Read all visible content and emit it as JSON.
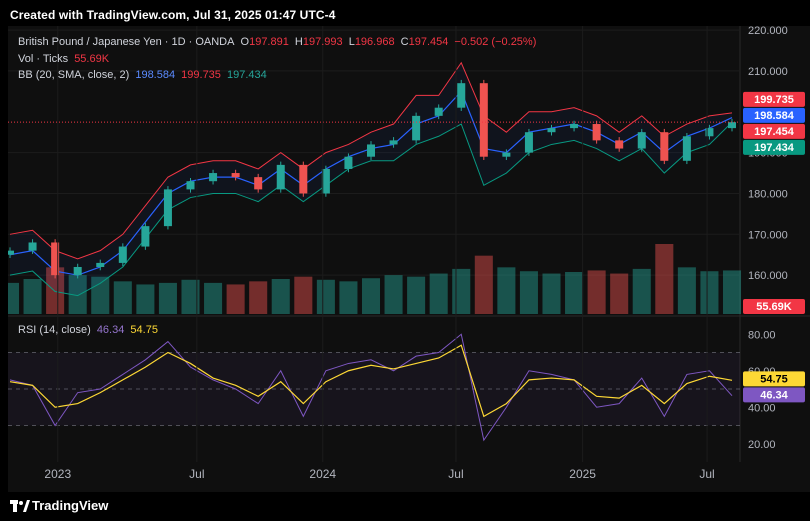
{
  "header": {
    "credit": "Created with TradingView.com, Jul 31, 2025 01:47 UTC-4"
  },
  "legend": {
    "symbol": "British Pound / Japanese Yen · 1D · OANDA",
    "o_label": "O",
    "o_value": "197.891",
    "h_label": "H",
    "h_value": "197.993",
    "l_label": "L",
    "l_value": "196.968",
    "c_label": "C",
    "c_value": "197.454",
    "change": "−0.502 (−0.25%)",
    "vol_label": "Vol · Ticks",
    "vol_value": "55.69K",
    "bb_label": "BB (20, SMA, close, 2)",
    "bb_basis": "198.584",
    "bb_upper": "199.735",
    "bb_lower": "197.434",
    "rsi_label": "RSI (14, close)",
    "rsi_value": "46.34",
    "rsi_ma": "54.75"
  },
  "badges": {
    "upper": "199.735",
    "basis": "198.584",
    "close": "197.454",
    "lower": "197.434",
    "volume": "55.69K",
    "rsi_ma": "54.75",
    "rsi": "46.34"
  },
  "footer": {
    "brand": "TradingView"
  },
  "colors": {
    "up": "#26a69a",
    "down": "#ef5350",
    "bb_upper": "#f23645",
    "bb_basis": "#2962ff",
    "bb_lower": "#089981",
    "rsi": "#7e57c2",
    "rsi_ma": "#fdd835",
    "background": "#0f0f0f"
  },
  "chart_data": [
    {
      "type": "line",
      "title": "British Pound / Japanese Yen · 1D · OANDA",
      "x_ticks": [
        "2023",
        "Jul",
        "2024",
        "Jul",
        "2025",
        "Jul"
      ],
      "y_ticks": [
        "160.000",
        "170.000",
        "180.000",
        "190.000",
        "210.000",
        "220.000"
      ],
      "ylim": [
        150,
        221
      ],
      "x": [
        "2022-11",
        "2022-12",
        "2023-01",
        "2023-02",
        "2023-03",
        "2023-04",
        "2023-05",
        "2023-06",
        "2023-07",
        "2023-08",
        "2023-09",
        "2023-10",
        "2023-11",
        "2023-12",
        "2024-01",
        "2024-02",
        "2024-03",
        "2024-04",
        "2024-05",
        "2024-06",
        "2024-07",
        "2024-08",
        "2024-09",
        "2024-10",
        "2024-11",
        "2024-12",
        "2025-01",
        "2025-02",
        "2025-03",
        "2025-04",
        "2025-05",
        "2025-06",
        "2025-07"
      ],
      "series": [
        {
          "name": "Close",
          "values": [
            166,
            168,
            160,
            162,
            163,
            167,
            172,
            181,
            183,
            185,
            184,
            181,
            187,
            180,
            186,
            189,
            192,
            193,
            199,
            201,
            207,
            189,
            190,
            195,
            196,
            197,
            193,
            191,
            195,
            188,
            194,
            196,
            197.454
          ]
        },
        {
          "name": "BB upper",
          "values": [
            170,
            171,
            166,
            164,
            166,
            170,
            177,
            184,
            187,
            188,
            188,
            186,
            190,
            186,
            190,
            192,
            195,
            197,
            204,
            204,
            212,
            199,
            195,
            200,
            200,
            201,
            199,
            195,
            199,
            194,
            197,
            199,
            199.735
          ]
        },
        {
          "name": "BB basis",
          "values": [
            165,
            166,
            161,
            160,
            162,
            166,
            173,
            180,
            183,
            184,
            184,
            182,
            186,
            182,
            186,
            189,
            191,
            192,
            197,
            199,
            205,
            191,
            190,
            195,
            196,
            197,
            195,
            192,
            195,
            190,
            194,
            196,
            198.584
          ]
        },
        {
          "name": "BB lower",
          "values": [
            160,
            161,
            156,
            155,
            158,
            162,
            169,
            176,
            179,
            180,
            180,
            178,
            182,
            178,
            182,
            186,
            188,
            188,
            192,
            194,
            197,
            182,
            185,
            190,
            192,
            193,
            191,
            188,
            191,
            185,
            190,
            192,
            197.434
          ]
        }
      ]
    },
    {
      "type": "bar",
      "title": "Vol · Ticks",
      "last_value": "55.69K",
      "values": [
        40,
        45,
        60,
        50,
        48,
        42,
        38,
        40,
        44,
        40,
        38,
        42,
        45,
        48,
        44,
        42,
        46,
        50,
        48,
        52,
        58,
        75,
        60,
        55,
        52,
        54,
        56,
        52,
        58,
        90,
        60,
        55,
        56
      ]
    },
    {
      "type": "line",
      "title": "RSI (14, close)",
      "y_ticks": [
        "20.00",
        "40.00",
        "60.00",
        "80.00"
      ],
      "ylim": [
        10,
        90
      ],
      "bands": [
        30,
        50,
        70
      ],
      "series": [
        {
          "name": "RSI",
          "values": [
            55,
            52,
            30,
            48,
            50,
            58,
            66,
            76,
            62,
            55,
            50,
            42,
            60,
            35,
            60,
            64,
            66,
            60,
            68,
            70,
            80,
            22,
            40,
            60,
            58,
            55,
            40,
            42,
            56,
            35,
            58,
            60,
            46.34
          ]
        },
        {
          "name": "RSI MA",
          "values": [
            54,
            52,
            40,
            42,
            48,
            55,
            62,
            70,
            64,
            56,
            52,
            46,
            54,
            42,
            54,
            60,
            63,
            61,
            64,
            67,
            74,
            35,
            42,
            55,
            56,
            55,
            46,
            45,
            52,
            42,
            53,
            57,
            54.75
          ]
        }
      ]
    }
  ]
}
